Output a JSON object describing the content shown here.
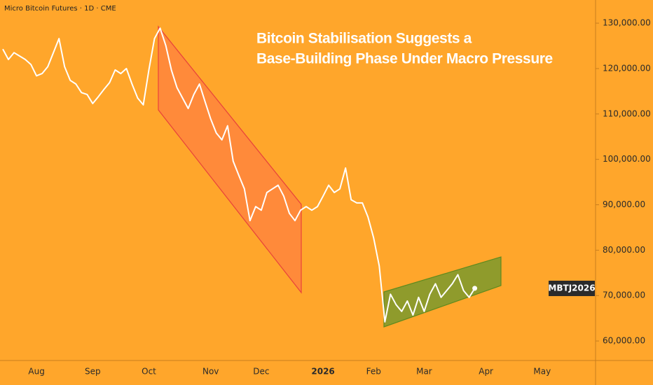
{
  "chart_data": {
    "type": "line",
    "header": "Micro Bitcoin Futures · 1D · CME",
    "title": [
      "Bitcoin Stabilisation Suggests a",
      "Base-Building Phase Under Macro Pressure"
    ],
    "price_tag": "MBTJ2026",
    "background": "#ffa62b",
    "categories": [
      null,
      null,
      null,
      null,
      null,
      null,
      "Aug",
      null,
      null,
      null,
      null,
      null,
      null,
      null,
      null,
      null,
      "Sep",
      null,
      null,
      null,
      null,
      null,
      null,
      null,
      null,
      null,
      "Oct",
      null,
      null,
      null,
      null,
      null,
      null,
      null,
      null,
      null,
      null,
      "Nov",
      null,
      null,
      null,
      null,
      null,
      null,
      null,
      null,
      "Dec",
      null,
      null,
      null,
      null,
      null,
      null,
      null,
      null,
      null,
      null,
      "2026",
      null,
      null,
      null,
      null,
      null,
      null,
      null,
      null,
      "Feb",
      null,
      null,
      null,
      null,
      null,
      null,
      null,
      null,
      "Mar",
      null,
      null,
      null,
      null,
      null,
      null,
      null,
      null,
      null,
      null,
      "Apr",
      null,
      null,
      null,
      null,
      null,
      null,
      null,
      null,
      null,
      "May",
      null,
      null,
      null,
      null,
      null,
      null,
      null,
      null,
      null
    ],
    "series": [
      {
        "color": "#ffffff",
        "values": [
          124300,
          122000,
          123500,
          122750,
          122000,
          120900,
          118400,
          118900,
          120400,
          123500,
          126600,
          120400,
          117400,
          116600,
          114700,
          114300,
          112300,
          113800,
          115400,
          116900,
          119700,
          118900,
          120000,
          116600,
          113500,
          112000,
          119700,
          126600,
          128900,
          125100,
          119700,
          115800,
          113500,
          111200,
          114300,
          116600,
          112700,
          108900,
          105800,
          104300,
          107400,
          99600,
          96500,
          93500,
          86500,
          89600,
          88800,
          92700,
          93500,
          94300,
          91900,
          88100,
          86500,
          88800,
          89600,
          88800,
          89600,
          91900,
          94300,
          92700,
          93500,
          98100,
          91100,
          90400,
          90400,
          87300,
          82700,
          76500,
          64200,
          70300,
          68000,
          66500,
          68800,
          65700,
          69600,
          66500,
          70300,
          72600,
          69600,
          71100,
          72600,
          74600,
          71100,
          69600,
          71600,
          null,
          null,
          null,
          null,
          null,
          null,
          null,
          null,
          null,
          null,
          null,
          null,
          null,
          null,
          null,
          null,
          null,
          null,
          null,
          null,
          null
        ]
      }
    ],
    "ylim": [
      55700,
      135100
    ],
    "yticks": [
      {
        "value": 60000,
        "label": "60,000.00"
      },
      {
        "value": 70000,
        "label": "70,000.00"
      },
      {
        "value": 80000,
        "label": "80,000.00"
      },
      {
        "value": 90000,
        "label": "90,000.00"
      },
      {
        "value": 100000,
        "label": "100,000.00"
      },
      {
        "value": 110000,
        "label": "110,000.00"
      },
      {
        "value": 120000,
        "label": "120,000.00"
      },
      {
        "value": 130000,
        "label": "130,000.00"
      }
    ]
  }
}
